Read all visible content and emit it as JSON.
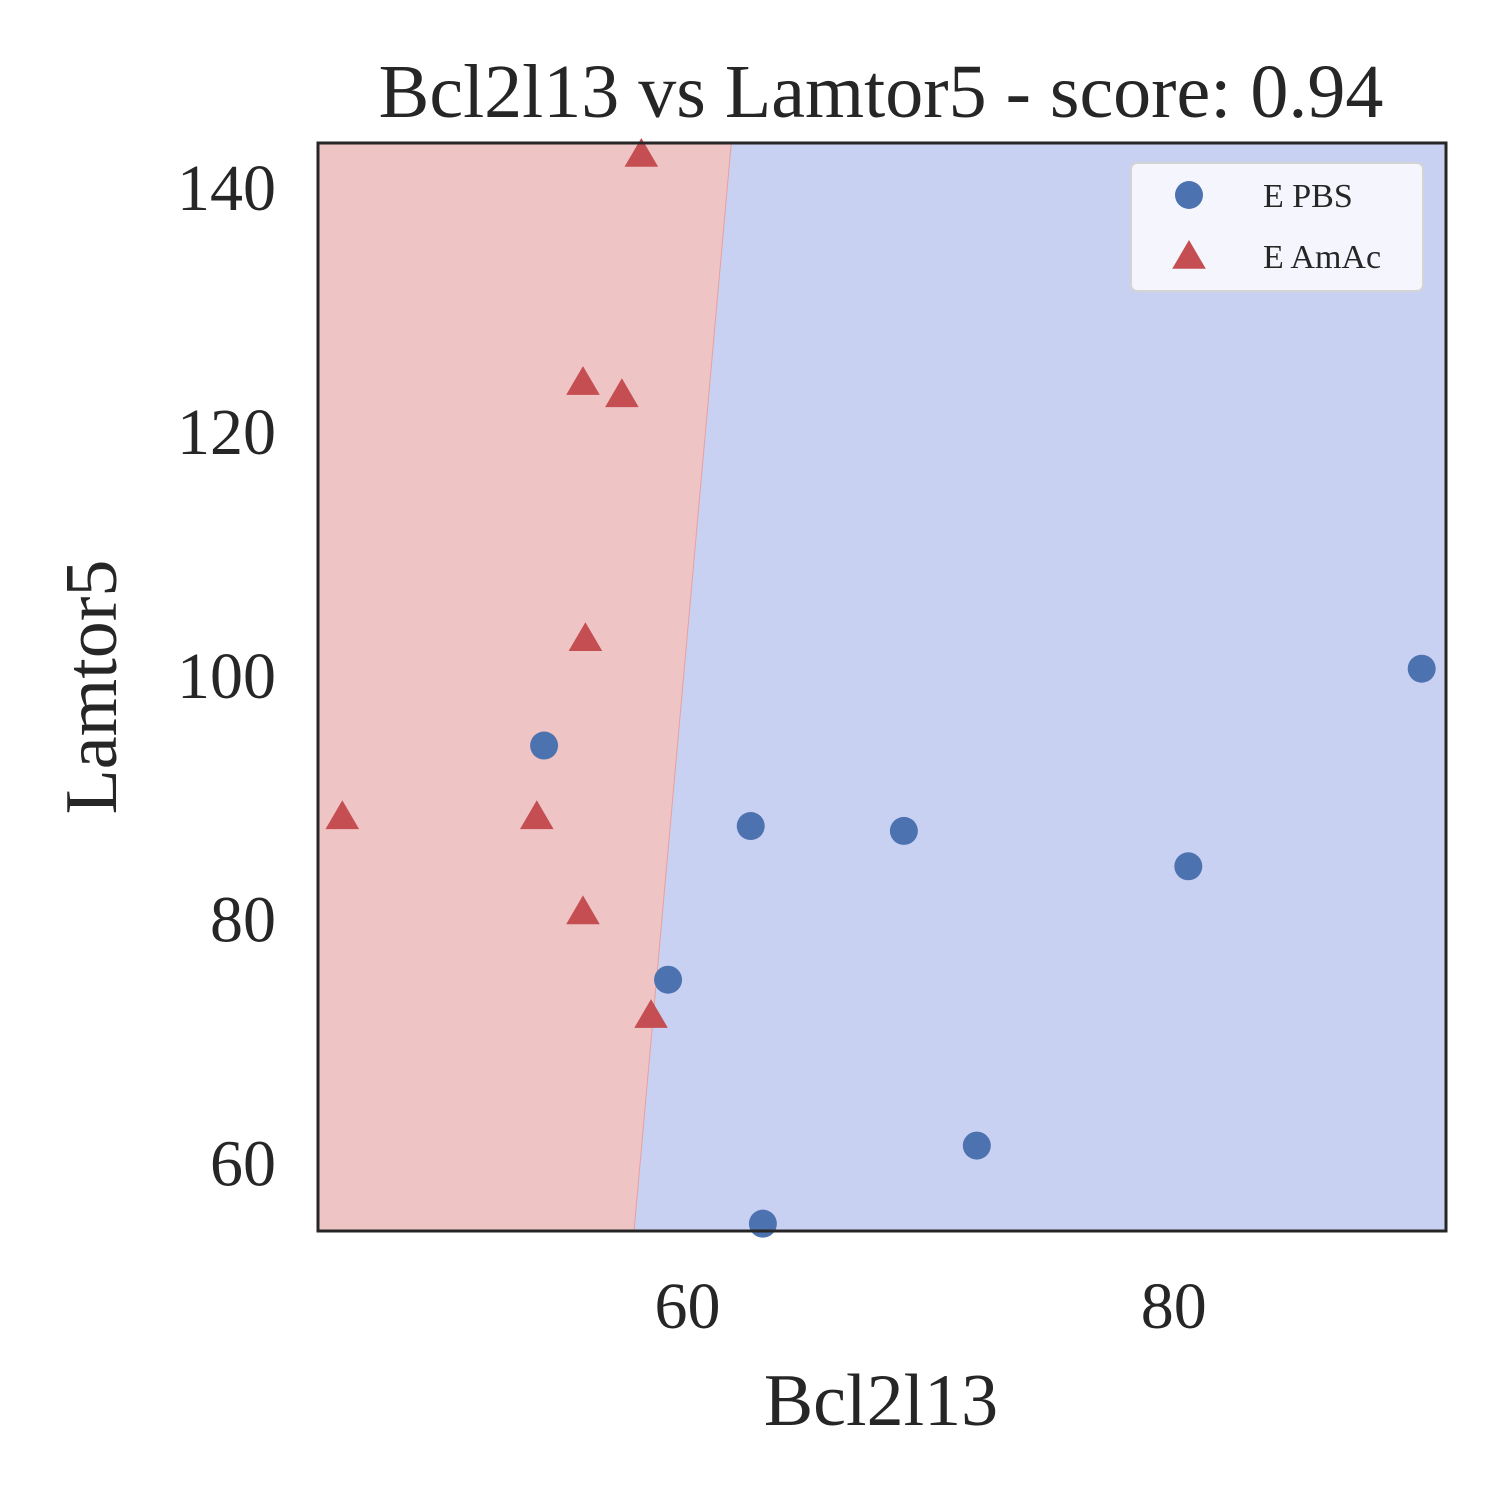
{
  "chart_data": {
    "type": "scatter",
    "title": "Bcl2l13 vs Lamtor5 - score: 0.94",
    "xlabel": "Bcl2l13",
    "ylabel": "Lamtor5",
    "xlim": [
      44.8,
      91.2
    ],
    "ylim": [
      54.4,
      143.6
    ],
    "xticks": [
      60,
      80
    ],
    "yticks": [
      60,
      80,
      100,
      120,
      140
    ],
    "grid": false,
    "legend_position": "top-right",
    "decision_boundary": {
      "bottom_x": 57.8,
      "top_x": 61.8,
      "left_region_color": "#efc4c4",
      "right_region_color": "#c9d1f2"
    },
    "series": [
      {
        "name": "E PBS",
        "marker": "circle",
        "color": "#4c72b0",
        "points": [
          [
            54.1,
            94.2
          ],
          [
            62.6,
            87.6
          ],
          [
            68.9,
            87.2
          ],
          [
            80.6,
            84.3
          ],
          [
            90.2,
            100.5
          ],
          [
            59.2,
            75.0
          ],
          [
            71.9,
            61.4
          ],
          [
            63.1,
            55.0
          ]
        ]
      },
      {
        "name": "E AmAc",
        "marker": "triangle",
        "color": "#c44e52",
        "points": [
          [
            58.1,
            142.7
          ],
          [
            55.7,
            124.0
          ],
          [
            57.3,
            123.0
          ],
          [
            55.8,
            103.0
          ],
          [
            45.8,
            88.4
          ],
          [
            53.8,
            88.4
          ],
          [
            55.7,
            80.6
          ],
          [
            58.5,
            72.1
          ]
        ]
      }
    ]
  }
}
